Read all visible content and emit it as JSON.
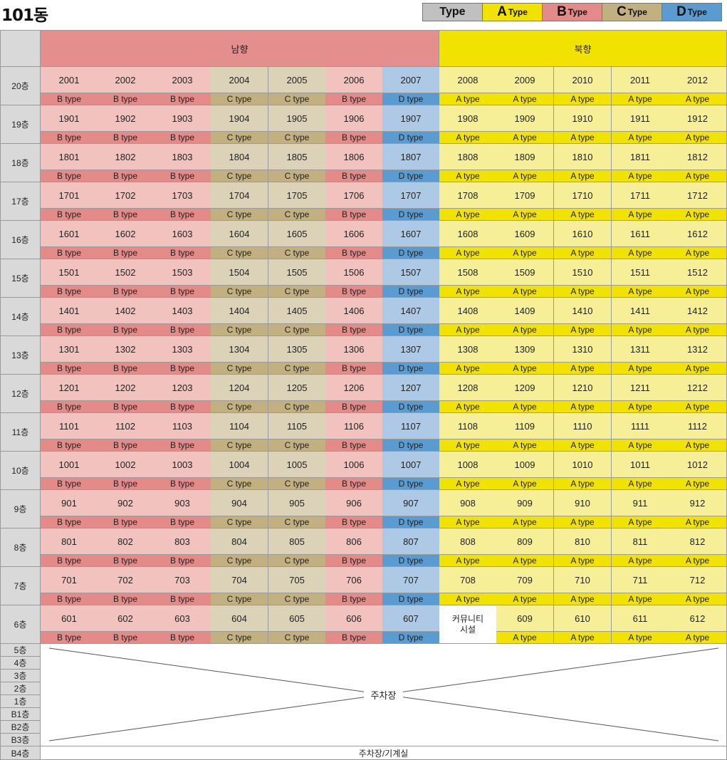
{
  "title": "101동",
  "legend": [
    {
      "big": "",
      "small": "Type",
      "color": "#c0c0c0"
    },
    {
      "big": "A",
      "small": "Type",
      "color": "#f2e200"
    },
    {
      "big": "B",
      "small": "Type",
      "color": "#e48a88"
    },
    {
      "big": "C",
      "small": "Type",
      "color": "#c3b080"
    },
    {
      "big": "D",
      "small": "Type",
      "color": "#5a9cd2"
    }
  ],
  "headers": {
    "south": "남향",
    "north": "북향"
  },
  "colors": {
    "header_blank": "#d9d9d9",
    "south_header": "#e48f8e",
    "north_header": "#f2e200",
    "floor_label": "#d9d9d9",
    "B_num": "#f2c2bf",
    "B_type": "#e48a88",
    "C_num": "#dcd2b8",
    "C_type": "#c3b080",
    "D_num": "#adc9e6",
    "D_type": "#5a9cd2",
    "A_num": "#f7ef98",
    "A_type": "#f2e200",
    "community": "#ffffff"
  },
  "column_types": [
    "B",
    "B",
    "B",
    "C",
    "C",
    "B",
    "D",
    "A",
    "A",
    "A",
    "A",
    "A"
  ],
  "type_labels": {
    "A": "A type",
    "B": "B type",
    "C": "C type",
    "D": "D type"
  },
  "floors": [
    {
      "label": "20층",
      "units": [
        "2001",
        "2002",
        "2003",
        "2004",
        "2005",
        "2006",
        "2007",
        "2008",
        "2009",
        "2010",
        "2011",
        "2012"
      ]
    },
    {
      "label": "19층",
      "units": [
        "1901",
        "1902",
        "1903",
        "1904",
        "1905",
        "1906",
        "1907",
        "1908",
        "1909",
        "1910",
        "1911",
        "1912"
      ]
    },
    {
      "label": "18층",
      "units": [
        "1801",
        "1802",
        "1803",
        "1804",
        "1805",
        "1806",
        "1807",
        "1808",
        "1809",
        "1810",
        "1811",
        "1812"
      ]
    },
    {
      "label": "17층",
      "units": [
        "1701",
        "1702",
        "1703",
        "1704",
        "1705",
        "1706",
        "1707",
        "1708",
        "1709",
        "1710",
        "1711",
        "1712"
      ]
    },
    {
      "label": "16층",
      "units": [
        "1601",
        "1602",
        "1603",
        "1604",
        "1605",
        "1606",
        "1607",
        "1608",
        "1609",
        "1610",
        "1611",
        "1612"
      ]
    },
    {
      "label": "15층",
      "units": [
        "1501",
        "1502",
        "1503",
        "1504",
        "1505",
        "1506",
        "1507",
        "1508",
        "1509",
        "1510",
        "1511",
        "1512"
      ]
    },
    {
      "label": "14층",
      "units": [
        "1401",
        "1402",
        "1403",
        "1404",
        "1405",
        "1406",
        "1407",
        "1408",
        "1409",
        "1410",
        "1411",
        "1412"
      ]
    },
    {
      "label": "13층",
      "units": [
        "1301",
        "1302",
        "1303",
        "1304",
        "1305",
        "1306",
        "1307",
        "1308",
        "1309",
        "1310",
        "1311",
        "1312"
      ]
    },
    {
      "label": "12층",
      "units": [
        "1201",
        "1202",
        "1203",
        "1204",
        "1205",
        "1206",
        "1207",
        "1208",
        "1209",
        "1210",
        "1211",
        "1212"
      ]
    },
    {
      "label": "11층",
      "units": [
        "1101",
        "1102",
        "1103",
        "1104",
        "1105",
        "1106",
        "1107",
        "1108",
        "1109",
        "1110",
        "1111",
        "1112"
      ]
    },
    {
      "label": "10층",
      "units": [
        "1001",
        "1002",
        "1003",
        "1004",
        "1005",
        "1006",
        "1007",
        "1008",
        "1009",
        "1010",
        "1011",
        "1012"
      ]
    },
    {
      "label": "9층",
      "units": [
        "901",
        "902",
        "903",
        "904",
        "905",
        "906",
        "907",
        "908",
        "909",
        "910",
        "911",
        "912"
      ]
    },
    {
      "label": "8층",
      "units": [
        "801",
        "802",
        "803",
        "804",
        "805",
        "806",
        "807",
        "808",
        "809",
        "810",
        "811",
        "812"
      ]
    },
    {
      "label": "7층",
      "units": [
        "701",
        "702",
        "703",
        "704",
        "705",
        "706",
        "707",
        "708",
        "709",
        "710",
        "711",
        "712"
      ]
    },
    {
      "label": "6층",
      "units": [
        "601",
        "602",
        "603",
        "604",
        "605",
        "606",
        "607",
        "커뮤니티 시설",
        "609",
        "610",
        "611",
        "612"
      ],
      "community_col": 7
    }
  ],
  "parking_floors": [
    "5층",
    "4층",
    "3층",
    "2층",
    "1층",
    "B1층",
    "B2층",
    "B3층"
  ],
  "parking_label": "주차장",
  "basement": {
    "label": "B4층",
    "text": "주차장/기계실"
  }
}
